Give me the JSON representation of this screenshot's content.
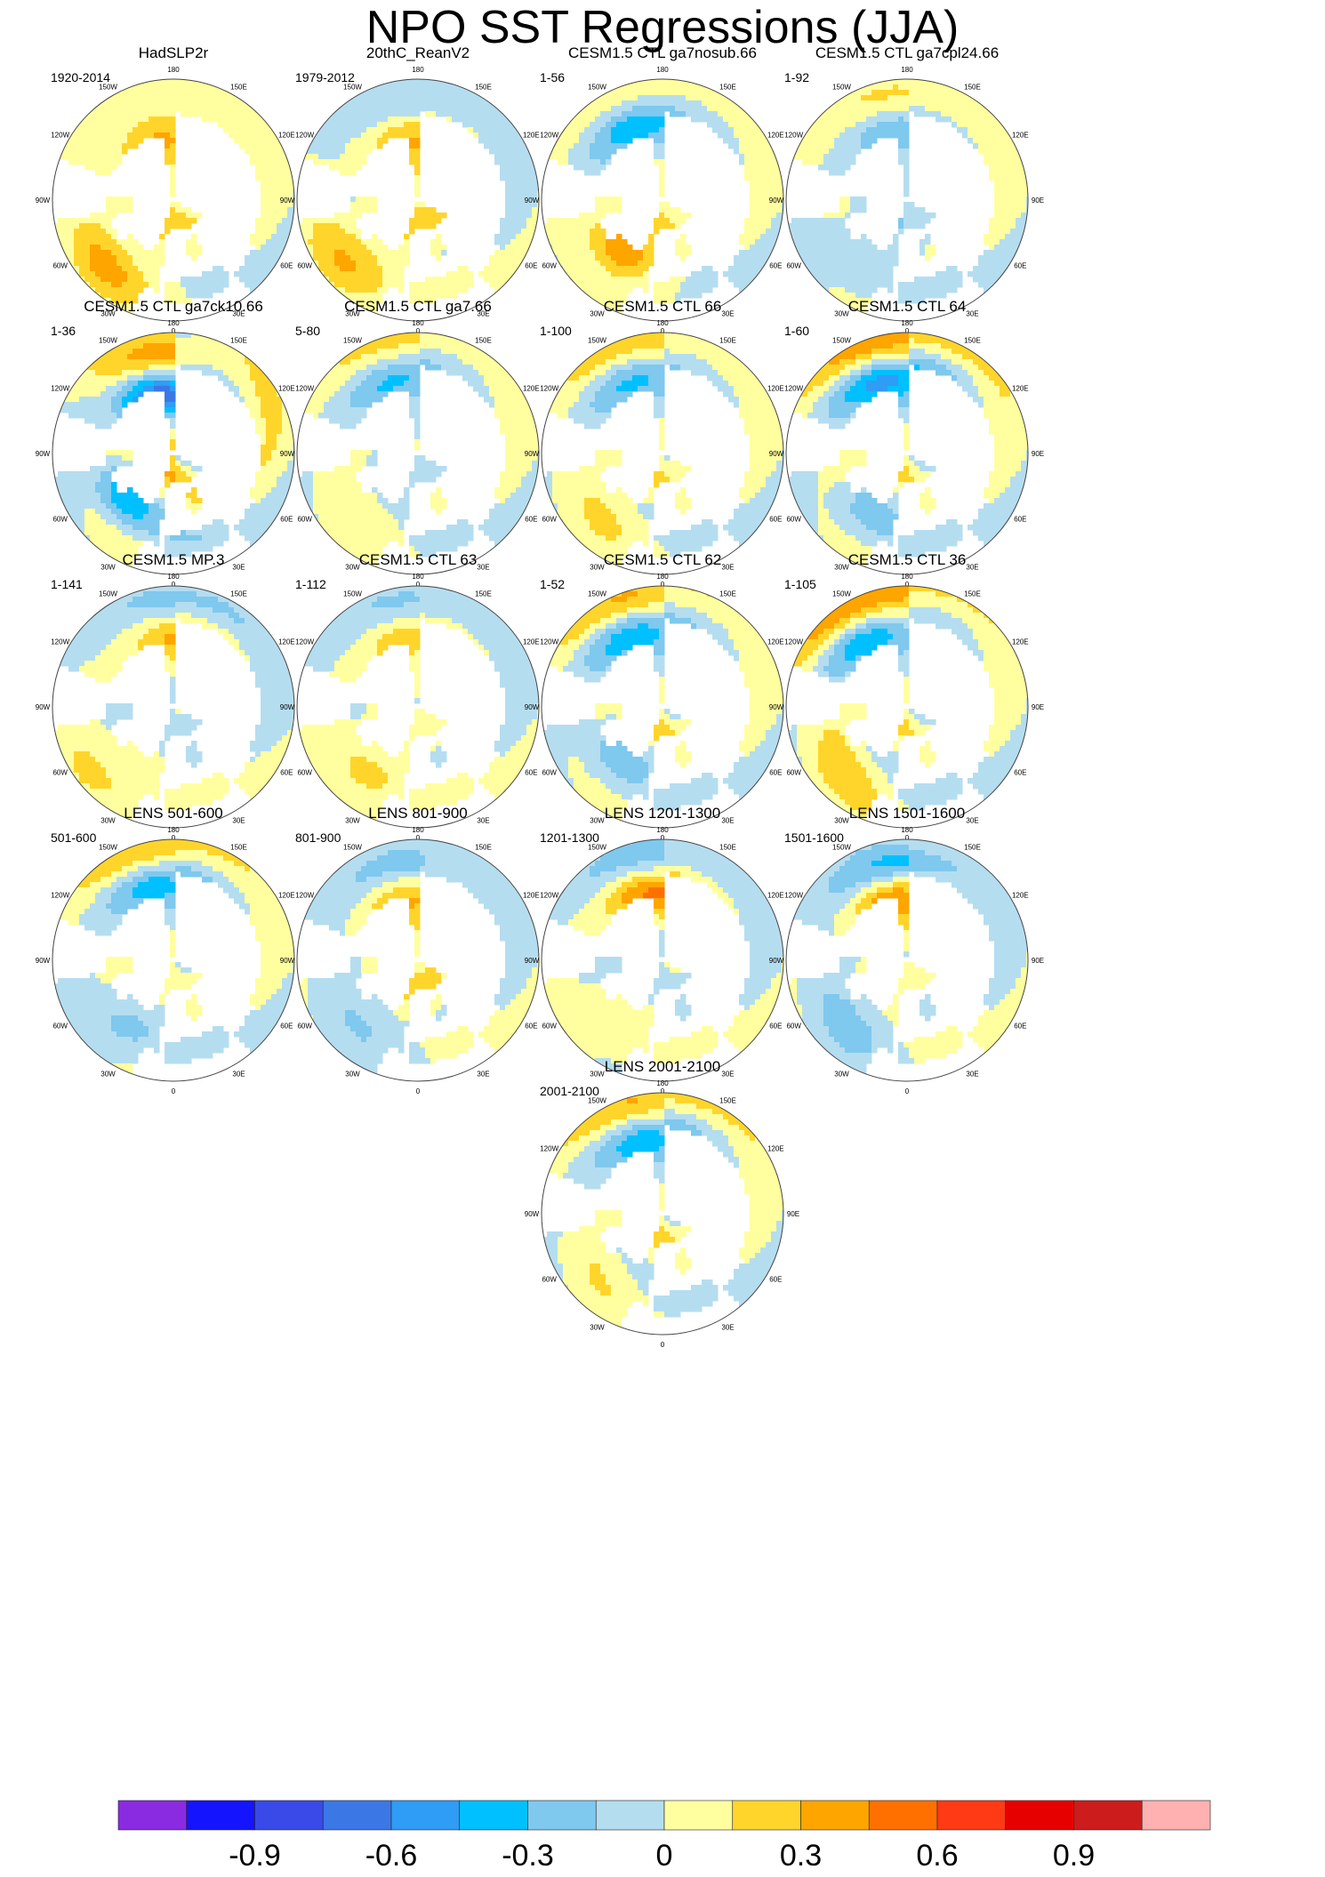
{
  "title": "NPO SST Regressions (JJA)",
  "colors": {
    "land": "#ffffff",
    "coast": "#555555",
    "frame": "#444444"
  },
  "chart_data": {
    "type": "map-panels",
    "projection": "north polar stereographic",
    "longitude_labels": [
      "180",
      "150W",
      "150E",
      "120W",
      "120E",
      "90W",
      "90E",
      "60W",
      "60E",
      "30W",
      "30E",
      "0"
    ],
    "panels": [
      {
        "title": "HadSLP2r",
        "period": "1920-2014",
        "pattern": {
          "pac": 0.36,
          "pacBand": 0.08,
          "pacLat": 55,
          "pacLon": -165,
          "atl": 0.35,
          "atlLat": 35,
          "atlLon": -45,
          "arc": 0.3,
          "x": 0.05
        }
      },
      {
        "title": "20thC_ReanV2",
        "period": "1979-2012",
        "pattern": {
          "pac": 0.3,
          "pacBand": -0.1,
          "pacLat": 55,
          "pacLon": -175,
          "atl": 0.35,
          "atlLat": 35,
          "atlLon": -50,
          "arc": 0.35,
          "x": -0.05
        }
      },
      {
        "title": "CESM1.5 CTL ga7nosub.66",
        "period": "1-56",
        "pattern": {
          "pac": -0.4,
          "pacBand": 0.1,
          "pacLat": 45,
          "pacLon": -160,
          "atl": 0.45,
          "atlLat": 55,
          "atlLon": -40,
          "arc": 0.2,
          "x": 0.02
        }
      },
      {
        "title": "CESM1.5 CTL ga7cpl24.66",
        "period": "1-92",
        "pattern": {
          "pac": -0.25,
          "pacBand": 0.15,
          "pacLat": 50,
          "pacLon": -170,
          "atl": -0.1,
          "atlLat": 45,
          "atlLon": -40,
          "arc": -0.2,
          "x": 0.05
        }
      },
      {
        "title": "CESM1.5 CTL ga7ck10.66",
        "period": "1-36",
        "pattern": {
          "pac": -0.55,
          "pacBand": 0.25,
          "pacLat": 55,
          "pacLon": -170,
          "atl": -0.45,
          "atlLat": 50,
          "atlLon": -55,
          "arc": 0.2,
          "x": 0.3
        }
      },
      {
        "title": "CESM1.5 CTL ga7.66",
        "period": "5-80",
        "pattern": {
          "pac": -0.3,
          "pacBand": 0.15,
          "pacLat": 45,
          "pacLon": -165,
          "atl": 0.1,
          "atlLat": 40,
          "atlLon": -40,
          "arc": -0.15,
          "x": 0.1
        }
      },
      {
        "title": "CESM1.5 CTL 66",
        "period": "1-100",
        "pattern": {
          "pac": -0.3,
          "pacBand": 0.2,
          "pacLat": 45,
          "pacLon": -160,
          "atl": 0.15,
          "atlLat": 40,
          "atlLon": -40,
          "arc": 0.15,
          "x": 0.1
        }
      },
      {
        "title": "CESM1.5 CTL 64",
        "period": "1-60",
        "pattern": {
          "pac": -0.45,
          "pacBand": 0.3,
          "pacLat": 45,
          "pacLon": -165,
          "atl": -0.2,
          "atlLat": 45,
          "atlLon": -40,
          "arc": 0.1,
          "x": 0.2
        }
      },
      {
        "title": "CESM1.5 MP.3",
        "period": "1-141",
        "pattern": {
          "pac": 0.35,
          "pacBand": -0.2,
          "pacLat": 50,
          "pacLon": 170,
          "atl": 0.2,
          "atlLat": 30,
          "atlLon": -50,
          "arc": -0.1,
          "x": -0.05
        }
      },
      {
        "title": "CESM1.5 CTL 63",
        "period": "1-112",
        "pattern": {
          "pac": 0.2,
          "pacBand": -0.15,
          "pacLat": 50,
          "pacLon": -170,
          "atl": 0.2,
          "atlLat": 40,
          "atlLon": -40,
          "arc": 0.1,
          "x": -0.05
        }
      },
      {
        "title": "CESM1.5 CTL 62",
        "period": "1-52",
        "pattern": {
          "pac": -0.35,
          "pacBand": 0.25,
          "pacLat": 45,
          "pacLon": -160,
          "atl": -0.25,
          "atlLat": 50,
          "atlLon": -45,
          "arc": 0.15,
          "x": 0.15
        }
      },
      {
        "title": "CESM1.5 CTL 36",
        "period": "1-105",
        "pattern": {
          "pac": -0.3,
          "pacBand": 0.35,
          "pacLat": 45,
          "pacLon": -150,
          "atl": 0.2,
          "atlLat": 40,
          "atlLon": -40,
          "arc": 0.1,
          "x": 0.2
        }
      },
      {
        "title": "LENS 501-600",
        "period": "501-600",
        "pattern": {
          "pac": -0.35,
          "pacBand": 0.25,
          "pacLat": 45,
          "pacLon": -170,
          "atl": -0.2,
          "atlLat": 40,
          "atlLon": -40,
          "arc": 0.1,
          "x": 0.1
        }
      },
      {
        "title": "LENS 801-900",
        "period": "801-900",
        "pattern": {
          "pac": 0.3,
          "pacBand": -0.2,
          "pacLat": 55,
          "pacLon": -170,
          "atl": -0.15,
          "atlLat": 40,
          "atlLon": -40,
          "arc": 0.3,
          "x": -0.05
        }
      },
      {
        "title": "LENS 1201-1300",
        "period": "1201-1300",
        "pattern": {
          "pac": 0.45,
          "pacBand": -0.2,
          "pacLat": 50,
          "pacLon": -175,
          "atl": 0.15,
          "atlLat": 40,
          "atlLon": -40,
          "arc": -0.1,
          "x": -0.1
        }
      },
      {
        "title": "LENS 1501-1600",
        "period": "1501-1600",
        "pattern": {
          "pac": 0.4,
          "pacBand": -0.3,
          "pacLat": 55,
          "pacLon": -170,
          "atl": -0.2,
          "atlLat": 40,
          "atlLon": -40,
          "arc": 0.15,
          "x": -0.1
        }
      },
      {
        "title": "LENS 2001-2100",
        "period": "2001-2100",
        "pattern": {
          "pac": -0.35,
          "pacBand": 0.25,
          "pacLat": 45,
          "pacLon": -170,
          "atl": 0.1,
          "atlLat": 40,
          "atlLon": -40,
          "arc": 0.15,
          "x": 0.15
        }
      }
    ],
    "colorbar": {
      "colors": [
        "#8a2be2",
        "#1414ff",
        "#3a4ae8",
        "#3b78e6",
        "#2f9cf5",
        "#00c0ff",
        "#7fc8ee",
        "#b5ddf0",
        "#ffff9f",
        "#ffd52b",
        "#ffa500",
        "#ff7000",
        "#ff3a14",
        "#e60000",
        "#cc1c1c",
        "#ffb0b0"
      ],
      "levels": [
        -1.05,
        -0.9,
        -0.75,
        -0.6,
        -0.45,
        -0.3,
        -0.15,
        0,
        0.15,
        0.3,
        0.45,
        0.6,
        0.75,
        0.9,
        1.05
      ],
      "tick_labels": [
        "-0.9",
        "-0.6",
        "-0.3",
        "0",
        "0.3",
        "0.6",
        "0.9"
      ],
      "tick_values": [
        -0.9,
        -0.6,
        -0.3,
        0,
        0.3,
        0.6,
        0.9
      ]
    }
  }
}
